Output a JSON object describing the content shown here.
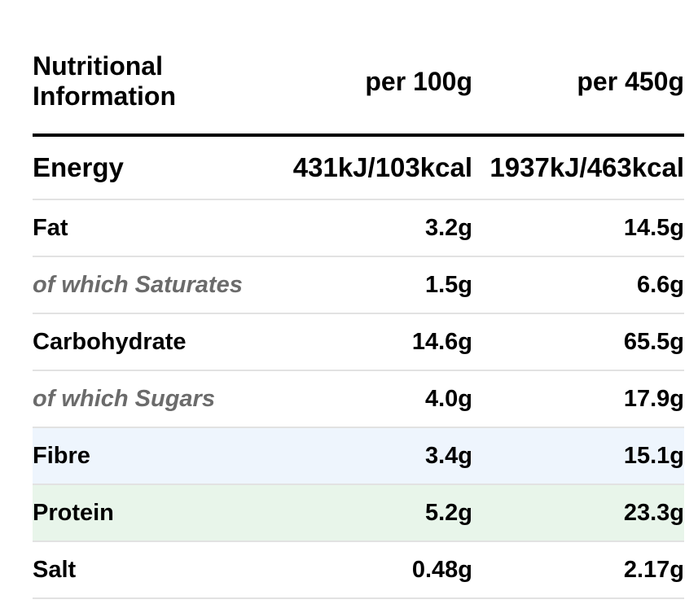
{
  "table": {
    "header": {
      "title": "Nutritional\nInformation",
      "col1": "per 100g",
      "col2": "per 450g"
    },
    "rows": [
      {
        "label": "Energy",
        "per100": "431kJ/103kcal",
        "per450": "1937kJ/463kcal"
      },
      {
        "label": "Fat",
        "per100": "3.2g",
        "per450": "14.5g"
      },
      {
        "label": "of which Saturates",
        "per100": "1.5g",
        "per450": "6.6g"
      },
      {
        "label": "Carbohydrate",
        "per100": "14.6g",
        "per450": "65.5g"
      },
      {
        "label": "of which Sugars",
        "per100": "4.0g",
        "per450": "17.9g"
      },
      {
        "label": "Fibre",
        "per100": "3.4g",
        "per450": "15.1g"
      },
      {
        "label": "Protein",
        "per100": "5.2g",
        "per450": "23.3g"
      },
      {
        "label": "Salt",
        "per100": "0.48g",
        "per450": "2.17g"
      }
    ]
  },
  "colors": {
    "fibre_highlight": "#eef5fd",
    "protein_highlight": "#e8f5ea",
    "sub_text": "#6b6b6b",
    "divider": "#e2e2e2"
  }
}
